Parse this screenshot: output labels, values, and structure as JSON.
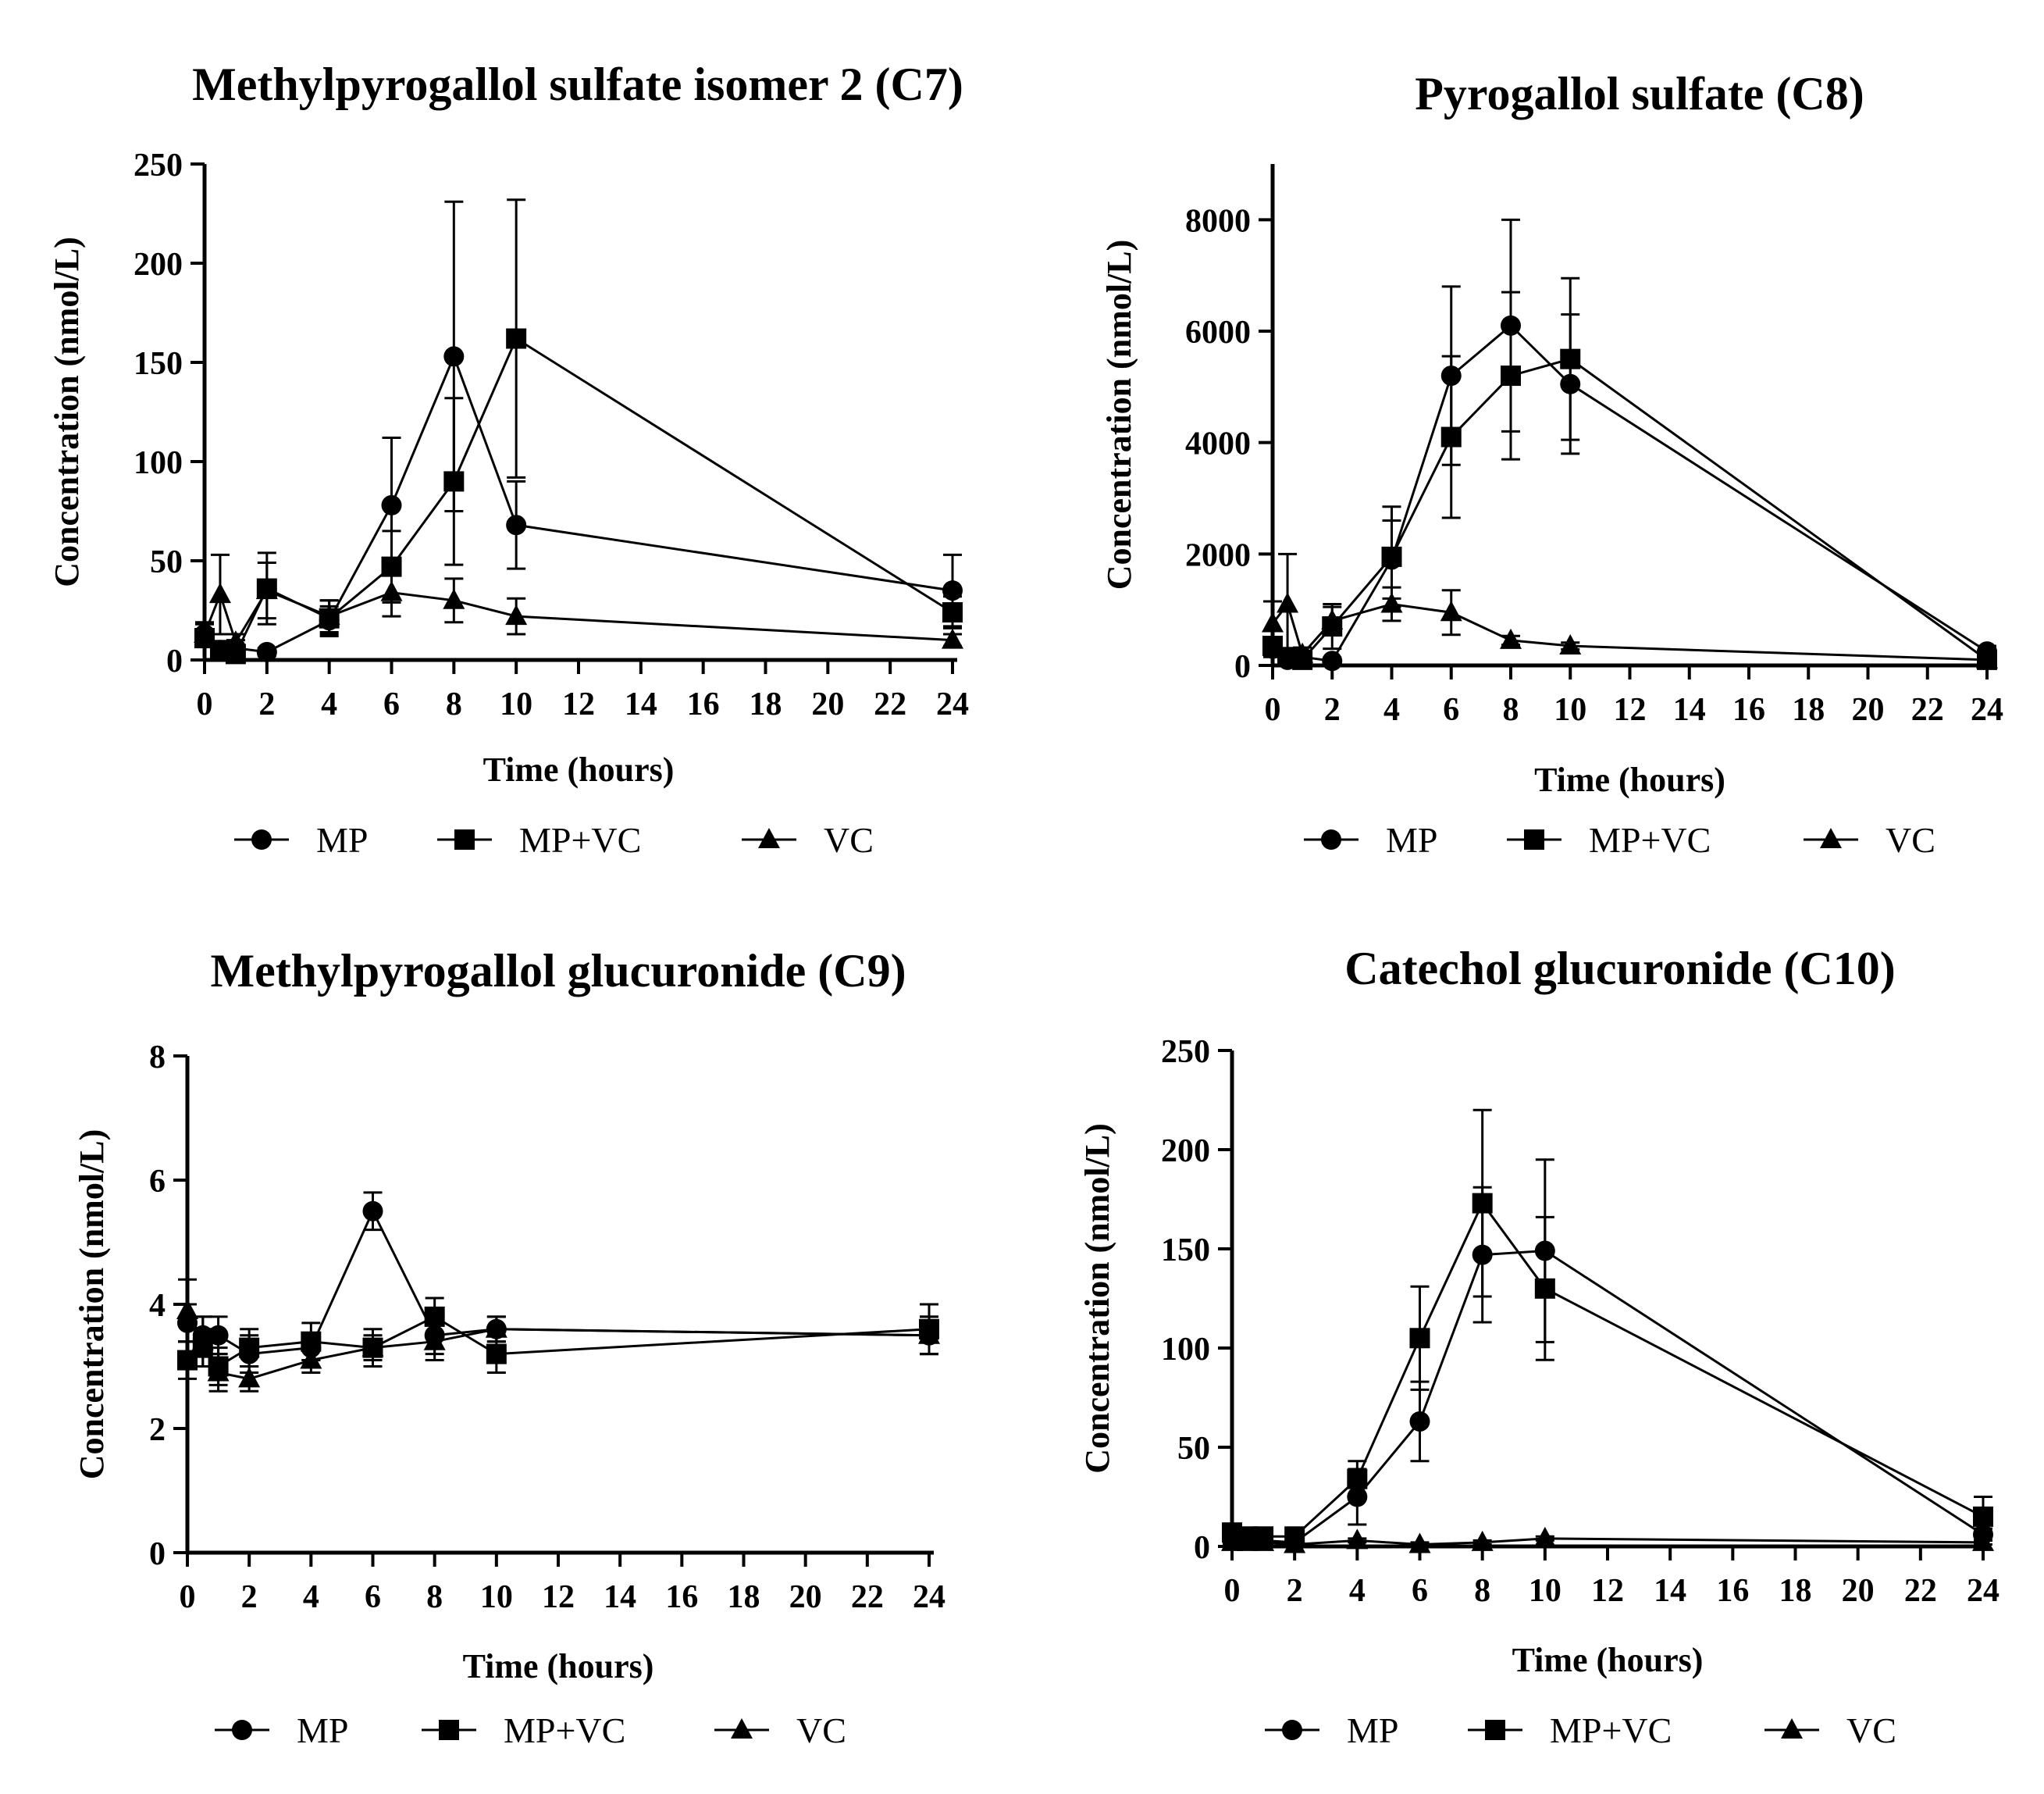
{
  "legend_labels": [
    "MP",
    "MP+VC",
    "VC"
  ],
  "chart_data": [
    {
      "type": "line",
      "title": "Methylpyrogallol sulfate isomer 2 (C7)",
      "xlabel": "Time (hours)",
      "ylabel": "Concentration (nmol/L)",
      "xlim": [
        0,
        24
      ],
      "ylim": [
        0,
        250
      ],
      "xticks": [
        0,
        2,
        4,
        6,
        8,
        10,
        12,
        14,
        16,
        18,
        20,
        22,
        24
      ],
      "yticks": [
        0,
        50,
        100,
        150,
        200,
        250
      ],
      "legend": "bottom",
      "series": [
        {
          "name": "MP",
          "marker": "circle",
          "x": [
            0,
            0.5,
            1,
            2,
            4,
            6,
            8,
            10,
            24
          ],
          "y": [
            13,
            5,
            6,
            4,
            20,
            78,
            153,
            68,
            35
          ],
          "err": [
            5,
            4,
            4,
            2,
            7,
            34,
            78,
            22,
            18
          ]
        },
        {
          "name": "MP+VC",
          "marker": "square",
          "x": [
            0,
            0.5,
            1,
            2,
            4,
            6,
            8,
            10,
            24
          ],
          "y": [
            11,
            5,
            3,
            36,
            21,
            47,
            90,
            162,
            24
          ],
          "err": [
            4,
            3,
            2,
            18,
            9,
            18,
            42,
            70,
            8
          ]
        },
        {
          "name": "VC",
          "marker": "triangle",
          "x": [
            0,
            0.5,
            1,
            2,
            4,
            6,
            8,
            10,
            24
          ],
          "y": [
            13,
            33,
            9,
            35,
            22,
            34,
            30,
            22,
            10
          ],
          "err": [
            6,
            20,
            4,
            14,
            8,
            12,
            11,
            9,
            3
          ]
        }
      ]
    },
    {
      "type": "line",
      "title": "Pyrogallol sulfate (C8)",
      "xlabel": "Time (hours)",
      "ylabel": "Concentration (nmol/L)",
      "xlim": [
        0,
        24
      ],
      "ylim": [
        0,
        9000
      ],
      "xticks": [
        0,
        2,
        4,
        6,
        8,
        10,
        12,
        14,
        16,
        18,
        20,
        22,
        24
      ],
      "yticks": [
        0,
        2000,
        4000,
        6000,
        8000
      ],
      "legend": "bottom",
      "series": [
        {
          "name": "MP",
          "marker": "circle",
          "x": [
            0,
            0.5,
            1,
            2,
            4,
            6,
            8,
            10,
            24
          ],
          "y": [
            300,
            100,
            150,
            80,
            1900,
            5200,
            6100,
            5050,
            250
          ],
          "err": [
            150,
            80,
            100,
            60,
            700,
            1600,
            1900,
            1250,
            100
          ]
        },
        {
          "name": "MP+VC",
          "marker": "square",
          "x": [
            0,
            0.5,
            1,
            2,
            4,
            6,
            8,
            10,
            24
          ],
          "y": [
            350,
            150,
            100,
            700,
            1950,
            4100,
            5200,
            5500,
            100
          ],
          "err": [
            150,
            100,
            60,
            400,
            900,
            1450,
            1500,
            1450,
            60
          ]
        },
        {
          "name": "VC",
          "marker": "triangle",
          "x": [
            0,
            0.5,
            1,
            2,
            4,
            6,
            8,
            10,
            24
          ],
          "y": [
            750,
            1100,
            200,
            800,
            1100,
            950,
            450,
            350,
            100
          ],
          "err": [
            400,
            900,
            120,
            250,
            300,
            400,
            80,
            60,
            40
          ]
        }
      ]
    },
    {
      "type": "line",
      "title": "Methylpyrogallol glucuronide (C9)",
      "xlabel": "Time (hours)",
      "ylabel": "Concentration (nmol/L)",
      "xlim": [
        0,
        24
      ],
      "ylim": [
        0,
        8
      ],
      "xticks": [
        0,
        2,
        4,
        6,
        8,
        10,
        12,
        14,
        16,
        18,
        20,
        22,
        24
      ],
      "yticks": [
        0,
        2,
        4,
        6,
        8
      ],
      "legend": "bottom",
      "series": [
        {
          "name": "MP",
          "marker": "circle",
          "x": [
            0,
            0.5,
            1,
            2,
            4,
            6,
            8,
            10,
            24
          ],
          "y": [
            3.7,
            3.5,
            3.5,
            3.2,
            3.3,
            5.5,
            3.5,
            3.6,
            3.5
          ],
          "err": [
            0.3,
            0.3,
            0.3,
            0.3,
            0.2,
            0.3,
            0.3,
            0.2,
            0.3
          ]
        },
        {
          "name": "MP+VC",
          "marker": "square",
          "x": [
            0,
            0.5,
            1,
            2,
            4,
            6,
            8,
            10,
            24
          ],
          "y": [
            3.1,
            3.3,
            3.0,
            3.3,
            3.4,
            3.3,
            3.8,
            3.2,
            3.6
          ],
          "err": [
            0.3,
            0.3,
            0.3,
            0.3,
            0.3,
            0.3,
            0.3,
            0.3,
            0.4
          ]
        },
        {
          "name": "VC",
          "marker": "triangle",
          "x": [
            0,
            0.5,
            1,
            2,
            4,
            6,
            8,
            10,
            24
          ],
          "y": [
            3.9,
            3.4,
            2.9,
            2.8,
            3.1,
            3.3,
            3.4,
            3.6,
            3.5
          ],
          "err": [
            0.5,
            0.4,
            0.3,
            0.2,
            0.2,
            0.2,
            0.3,
            0.2,
            0.3
          ]
        }
      ]
    },
    {
      "type": "line",
      "title": "Catechol glucuronide (C10)",
      "xlabel": "Time (hours)",
      "ylabel": "Concentration (nmol/L)",
      "xlim": [
        0,
        24
      ],
      "ylim": [
        0,
        250
      ],
      "xticks": [
        0,
        2,
        4,
        6,
        8,
        10,
        12,
        14,
        16,
        18,
        20,
        22,
        24
      ],
      "yticks": [
        0,
        50,
        100,
        150,
        200,
        250
      ],
      "legend": "bottom",
      "series": [
        {
          "name": "MP",
          "marker": "circle",
          "x": [
            0,
            0.5,
            1,
            2,
            4,
            6,
            8,
            10,
            24
          ],
          "y": [
            5,
            3,
            3,
            2,
            25,
            63,
            147,
            149,
            6
          ],
          "err": [
            3,
            2,
            2,
            1,
            14,
            20,
            34,
            46,
            3
          ]
        },
        {
          "name": "MP+VC",
          "marker": "square",
          "x": [
            0,
            0.5,
            1,
            2,
            4,
            6,
            8,
            10,
            24
          ],
          "y": [
            7,
            5,
            5,
            5,
            34,
            105,
            173,
            130,
            15
          ],
          "err": [
            3,
            2,
            2,
            2,
            9,
            26,
            47,
            36,
            10
          ]
        },
        {
          "name": "VC",
          "marker": "triangle",
          "x": [
            0,
            0.5,
            1,
            2,
            4,
            6,
            8,
            10,
            24
          ],
          "y": [
            2,
            2,
            2,
            1,
            3,
            1,
            2,
            4,
            2
          ],
          "err": [
            1,
            1,
            1,
            1,
            1,
            1,
            1,
            1,
            1
          ]
        }
      ]
    }
  ]
}
